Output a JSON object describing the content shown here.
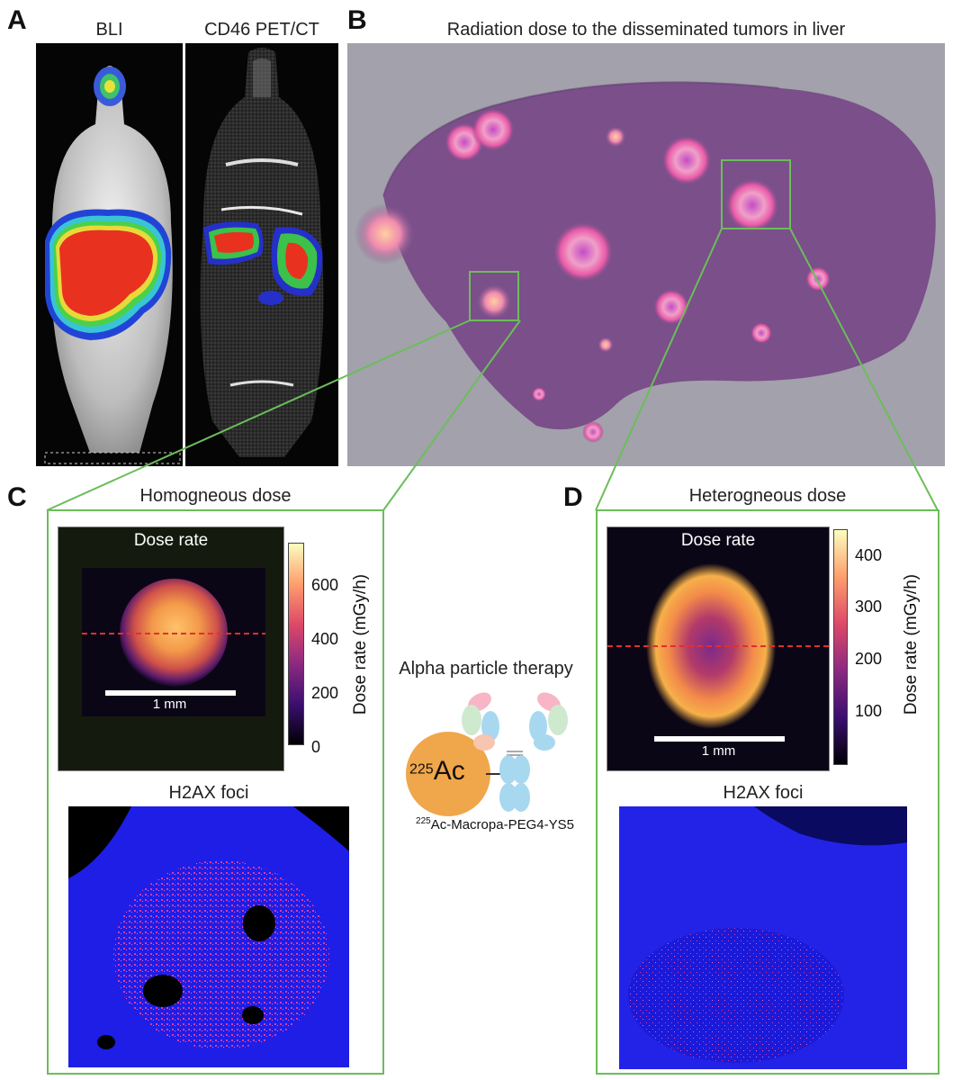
{
  "panel_labels": {
    "a": "A",
    "b": "B",
    "c": "C",
    "d": "D"
  },
  "panel_a": {
    "title_left": "BLI",
    "title_right": "CD46 PET/CT"
  },
  "panel_b": {
    "title": "Radiation dose to the disseminated tumors in liver"
  },
  "panel_c": {
    "title": "Homogneous dose",
    "heatmap_title": "Dose rate",
    "scale_bar": "1 mm",
    "colorbar_label": "Dose rate (mGy/h)",
    "colorbar_ticks": [
      "600",
      "400",
      "200",
      "0"
    ],
    "foci_title": "H2AX foci"
  },
  "panel_d": {
    "title": "Heterogneous dose",
    "heatmap_title": "Dose rate",
    "scale_bar": "1 mm",
    "colorbar_label": "Dose rate (mGy/h)",
    "colorbar_ticks": [
      "400",
      "300",
      "200",
      "100"
    ],
    "foci_title": "H2AX foci"
  },
  "center": {
    "title": "Alpha particle therapy",
    "isotope_mass": "225",
    "isotope_symbol": "Ac",
    "compound_mass": "225",
    "compound_name": "Ac-Macropa-PEG4-YS5"
  },
  "colors": {
    "frame_green": "#6cbd5a",
    "dashed_red": "#e0302a",
    "ac_orange": "#f0a64a",
    "h2ax_blue": "#1e1ee6",
    "liver_purple": "#7a4f8a"
  }
}
